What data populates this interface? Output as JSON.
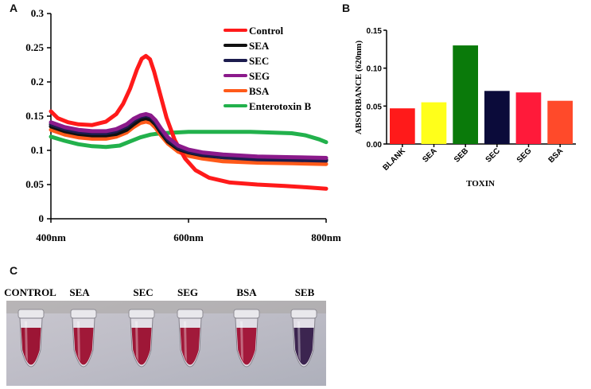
{
  "panels": {
    "a": "A",
    "b": "B",
    "c": "C"
  },
  "colors": {
    "control": "#ff1a1a",
    "sea": "#111111",
    "sec": "#1c1c4e",
    "seg": "#8b1a8b",
    "bsa": "#ff5a1a",
    "enterotoxin_b": "#22b14c",
    "bar_blank": "#ff1a1a",
    "bar_sea": "#ffff1a",
    "bar_seb": "#0a7a0a",
    "bar_sec": "#0b0b3a",
    "bar_seg": "#ff1a3a",
    "bar_bsa": "#ff4a2a"
  },
  "chart_data": [
    {
      "type": "line",
      "panel": "A",
      "xlabel": "",
      "ylabel": "",
      "xlim": [
        400,
        800
      ],
      "ylim": [
        0,
        0.3
      ],
      "x_ticks": [
        400,
        600,
        800
      ],
      "x_tick_labels": [
        "400nm",
        "600nm",
        "800nm"
      ],
      "y_ticks": [
        0,
        0.05,
        0.1,
        0.15,
        0.2,
        0.25,
        0.3
      ],
      "y_tick_labels": [
        "0",
        "0.05",
        "0.1",
        "0.15",
        "0.2",
        "0.25",
        "0.3"
      ],
      "legend_position": "top-right",
      "series": [
        {
          "name": "Control",
          "color_key": "control",
          "x": [
            400,
            410,
            425,
            440,
            460,
            480,
            495,
            505,
            515,
            525,
            532,
            538,
            544,
            550,
            558,
            568,
            580,
            595,
            610,
            630,
            660,
            700,
            740,
            770,
            800
          ],
          "y": [
            0.157,
            0.147,
            0.141,
            0.138,
            0.137,
            0.142,
            0.153,
            0.168,
            0.19,
            0.218,
            0.234,
            0.238,
            0.233,
            0.215,
            0.185,
            0.148,
            0.115,
            0.088,
            0.071,
            0.06,
            0.053,
            0.05,
            0.048,
            0.046,
            0.044
          ]
        },
        {
          "name": "SEA",
          "color_key": "sea",
          "x": [
            400,
            420,
            440,
            460,
            480,
            495,
            510,
            520,
            530,
            538,
            545,
            552,
            560,
            570,
            585,
            600,
            620,
            650,
            700,
            750,
            800
          ],
          "y": [
            0.135,
            0.128,
            0.124,
            0.122,
            0.122,
            0.124,
            0.13,
            0.138,
            0.145,
            0.147,
            0.145,
            0.138,
            0.126,
            0.113,
            0.102,
            0.097,
            0.093,
            0.09,
            0.088,
            0.087,
            0.086
          ]
        },
        {
          "name": "SEC",
          "color_key": "sec",
          "x": [
            400,
            420,
            440,
            460,
            480,
            495,
            510,
            520,
            530,
            538,
            545,
            552,
            560,
            570,
            585,
            600,
            620,
            650,
            700,
            750,
            800
          ],
          "y": [
            0.138,
            0.131,
            0.127,
            0.125,
            0.125,
            0.128,
            0.135,
            0.143,
            0.149,
            0.151,
            0.149,
            0.141,
            0.129,
            0.116,
            0.104,
            0.098,
            0.094,
            0.09,
            0.087,
            0.086,
            0.085
          ]
        },
        {
          "name": "SEG",
          "color_key": "seg",
          "x": [
            400,
            420,
            440,
            460,
            480,
            495,
            510,
            520,
            530,
            538,
            545,
            552,
            560,
            570,
            585,
            600,
            620,
            650,
            700,
            750,
            800
          ],
          "y": [
            0.141,
            0.134,
            0.13,
            0.128,
            0.128,
            0.131,
            0.138,
            0.146,
            0.151,
            0.153,
            0.151,
            0.144,
            0.132,
            0.119,
            0.107,
            0.101,
            0.097,
            0.094,
            0.091,
            0.09,
            0.089
          ]
        },
        {
          "name": "BSA",
          "color_key": "bsa",
          "x": [
            400,
            420,
            440,
            460,
            480,
            495,
            510,
            520,
            530,
            538,
            545,
            552,
            560,
            570,
            585,
            600,
            620,
            650,
            700,
            750,
            800
          ],
          "y": [
            0.13,
            0.123,
            0.119,
            0.117,
            0.117,
            0.12,
            0.126,
            0.134,
            0.14,
            0.142,
            0.14,
            0.133,
            0.122,
            0.11,
            0.098,
            0.092,
            0.088,
            0.084,
            0.082,
            0.081,
            0.08
          ]
        },
        {
          "name": "Enterotoxin B",
          "color_key": "enterotoxin_b",
          "x": [
            400,
            420,
            440,
            460,
            480,
            500,
            515,
            530,
            545,
            560,
            580,
            600,
            630,
            660,
            690,
            720,
            750,
            770,
            790,
            800
          ],
          "y": [
            0.12,
            0.114,
            0.109,
            0.106,
            0.105,
            0.107,
            0.113,
            0.119,
            0.123,
            0.125,
            0.126,
            0.127,
            0.127,
            0.127,
            0.127,
            0.126,
            0.125,
            0.122,
            0.116,
            0.112
          ]
        }
      ]
    },
    {
      "type": "bar",
      "panel": "B",
      "xlabel": "TOXIN",
      "ylabel": "ABSORBANCE (620nm)",
      "ylim": [
        0,
        0.15
      ],
      "y_ticks": [
        0,
        0.05,
        0.1,
        0.15
      ],
      "y_tick_labels": [
        "0.00",
        "0.05",
        "0.10",
        "0.15"
      ],
      "categories": [
        "BLANK",
        "SEA",
        "SEB",
        "SEC",
        "SEG",
        "BSA"
      ],
      "values": [
        0.047,
        0.055,
        0.13,
        0.07,
        0.068,
        0.057
      ],
      "color_keys": [
        "bar_blank",
        "bar_sea",
        "bar_seb",
        "bar_sec",
        "bar_seg",
        "bar_bsa"
      ]
    }
  ],
  "photo": {
    "labels": [
      "CONTROL",
      "SEA",
      "SEC",
      "SEG",
      "BSA",
      "SEB"
    ],
    "tube_colors": [
      "#9c1535",
      "#a01838",
      "#9e1737",
      "#a11a3a",
      "#a3193b",
      "#3c2550"
    ]
  }
}
